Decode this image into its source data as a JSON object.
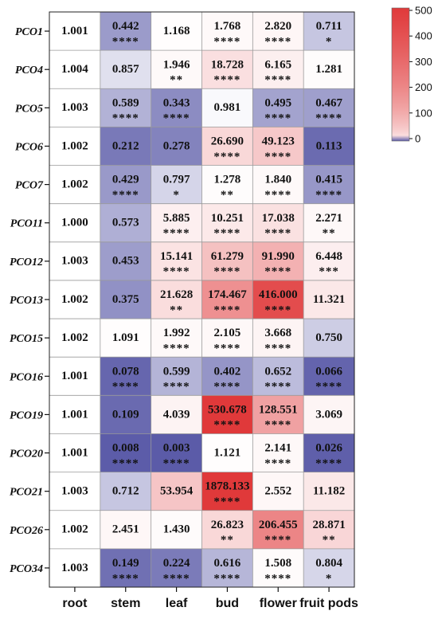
{
  "chart_data": {
    "type": "heatmap",
    "columns": [
      "root",
      "stem",
      "leaf",
      "bud",
      "flower",
      "fruit pods"
    ],
    "rows": [
      "PCO1",
      "PCO4",
      "PCO5",
      "PCO6",
      "PCO7",
      "PCO11",
      "PCO12",
      "PCO13",
      "PCO15",
      "PCO16",
      "PCO19",
      "PCO20",
      "PCO21",
      "PCO26",
      "PCO34"
    ],
    "values": [
      [
        "1.001",
        "0.442",
        "1.168",
        "1.768",
        "2.820",
        "0.711"
      ],
      [
        "1.004",
        "0.857",
        "1.946",
        "18.728",
        "6.165",
        "1.281"
      ],
      [
        "1.003",
        "0.589",
        "0.343",
        "0.981",
        "0.495",
        "0.467"
      ],
      [
        "1.002",
        "0.212",
        "0.278",
        "26.690",
        "49.123",
        "0.113"
      ],
      [
        "1.002",
        "0.429",
        "0.797",
        "1.278",
        "1.840",
        "0.415"
      ],
      [
        "1.000",
        "0.573",
        "5.885",
        "10.251",
        "17.038",
        "2.271"
      ],
      [
        "1.003",
        "0.453",
        "15.141",
        "61.279",
        "91.990",
        "6.448"
      ],
      [
        "1.002",
        "0.375",
        "21.628",
        "174.467",
        "416.000",
        "11.321"
      ],
      [
        "1.002",
        "1.091",
        "1.992",
        "2.105",
        "3.668",
        "0.750"
      ],
      [
        "1.001",
        "0.078",
        "0.599",
        "0.402",
        "0.652",
        "0.066"
      ],
      [
        "1.001",
        "0.109",
        "4.039",
        "530.678",
        "128.551",
        "3.069"
      ],
      [
        "1.001",
        "0.008",
        "0.003",
        "1.121",
        "2.141",
        "0.026"
      ],
      [
        "1.003",
        "0.712",
        "53.954",
        "1878.133",
        "2.552",
        "11.182"
      ],
      [
        "1.002",
        "2.451",
        "1.430",
        "26.823",
        "206.455",
        "28.871"
      ],
      [
        "1.003",
        "0.149",
        "0.224",
        "0.616",
        "1.508",
        "0.804"
      ]
    ],
    "significance": [
      [
        "",
        "****",
        "",
        "****",
        "****",
        "*"
      ],
      [
        "",
        "",
        "**",
        "****",
        "****",
        ""
      ],
      [
        "",
        "****",
        "****",
        "",
        "****",
        "****"
      ],
      [
        "",
        "",
        "",
        "****",
        "****",
        ""
      ],
      [
        "",
        "****",
        "*",
        "**",
        "****",
        "****"
      ],
      [
        "",
        "",
        "****",
        "****",
        "****",
        "**"
      ],
      [
        "",
        "",
        "****",
        "****",
        "****",
        "***"
      ],
      [
        "",
        "",
        "**",
        "****",
        "****",
        ""
      ],
      [
        "",
        "",
        "****",
        "****",
        "****",
        ""
      ],
      [
        "",
        "****",
        "****",
        "****",
        "****",
        "****"
      ],
      [
        "",
        "",
        "",
        "****",
        "****",
        ""
      ],
      [
        "",
        "****",
        "****",
        "",
        "****",
        "****"
      ],
      [
        "",
        "",
        "",
        "****",
        "",
        ""
      ],
      [
        "",
        "",
        "",
        "**",
        "****",
        "**"
      ],
      [
        "",
        "****",
        "****",
        "****",
        "****",
        "*"
      ]
    ],
    "colorbar": {
      "ticks": [
        "500",
        "400",
        "300",
        "200",
        "100",
        "0"
      ],
      "range": [
        0,
        500
      ],
      "low_color": "#5b5ba8",
      "mid_color": "#ffffff",
      "high_color": "#e0393a"
    }
  }
}
